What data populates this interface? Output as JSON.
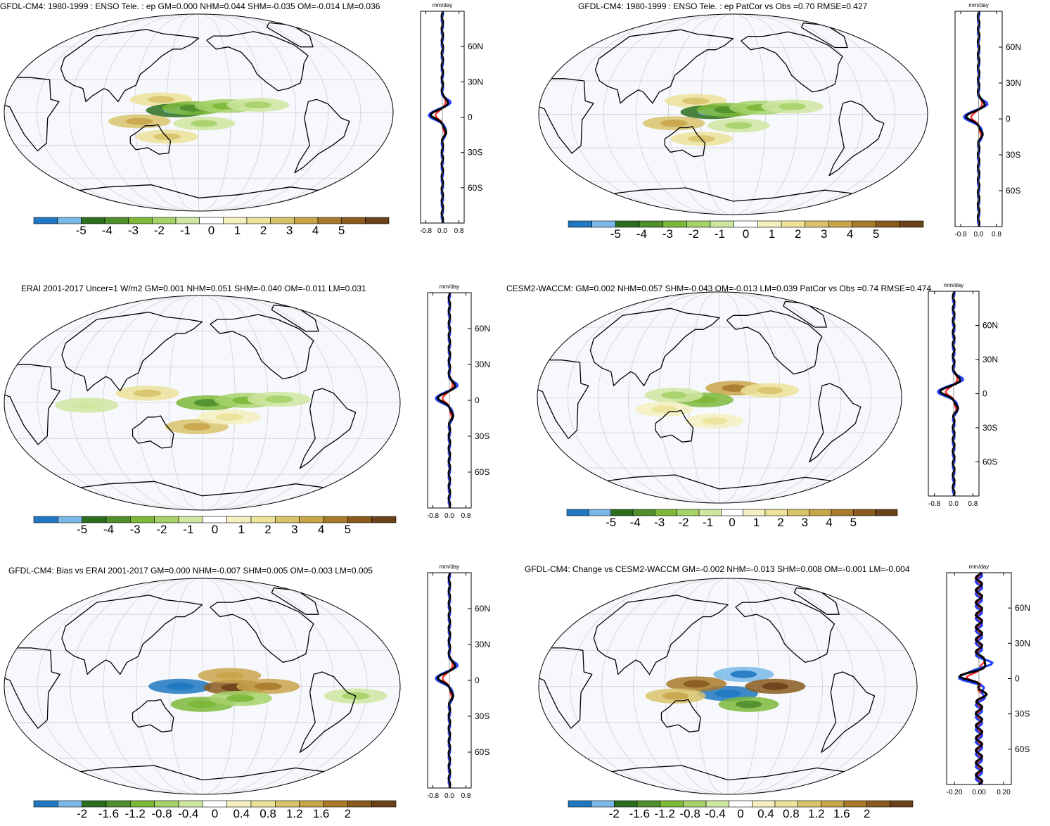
{
  "chart_data": [
    {
      "type": "heatmap",
      "title": "GFDL-CM4: 1980-1999 : ENSO Tele. : ep GM=0.000 NHM=0.044 SHM=-0.035 OM=-0.014 LM=0.036",
      "colorbar_ticks": [
        "-5",
        "-4",
        "-3",
        "-2",
        "-1",
        "0",
        "1",
        "2",
        "3",
        "4",
        "5"
      ],
      "profile": {
        "unit": "mm/day",
        "yticks": [
          "60N",
          "30N",
          "0",
          "30S",
          "60S"
        ],
        "xticks": [
          "-0.8",
          "0.0",
          "0.8"
        ]
      },
      "anomalies": [
        {
          "lon": 145,
          "lat": 12,
          "v": 1.5
        },
        {
          "lon": 160,
          "lat": 2,
          "v": -3.5
        },
        {
          "lon": 175,
          "lat": 4,
          "v": -2.5
        },
        {
          "lon": 205,
          "lat": 6,
          "v": -1.5
        },
        {
          "lon": 235,
          "lat": 7,
          "v": -1
        },
        {
          "lon": 185,
          "lat": -10,
          "v": -1
        },
        {
          "lon": 125,
          "lat": -8,
          "v": 2
        },
        {
          "lon": 150,
          "lat": -22,
          "v": 1.5
        }
      ]
    },
    {
      "type": "heatmap",
      "title": "GFDL-CM4: 1980-1999 : ENSO Tele. : ep PatCor vs Obs =0.70 RMSE=0.427",
      "colorbar_ticks": [
        "-5",
        "-4",
        "-3",
        "-2",
        "-1",
        "0",
        "1",
        "2",
        "3",
        "4",
        "5"
      ],
      "profile": {
        "unit": "mm/day",
        "yticks": [
          "60N",
          "30N",
          "0",
          "30S",
          "60S"
        ],
        "xticks": [
          "-0.8",
          "0.0",
          "0.8"
        ]
      },
      "anomalies": [
        {
          "lon": 145,
          "lat": 12,
          "v": 1.5
        },
        {
          "lon": 160,
          "lat": 2,
          "v": -3.5
        },
        {
          "lon": 175,
          "lat": 4,
          "v": -2.5
        },
        {
          "lon": 205,
          "lat": 6,
          "v": -1.5
        },
        {
          "lon": 235,
          "lat": 7,
          "v": -1
        },
        {
          "lon": 185,
          "lat": -10,
          "v": -1
        },
        {
          "lon": 125,
          "lat": -8,
          "v": 2
        },
        {
          "lon": 150,
          "lat": -22,
          "v": 1.5
        }
      ]
    },
    {
      "type": "heatmap",
      "title": "ERAI 2001-2017 Uncer=1 W/m2 GM=0.001 NHM=0.051 SHM=-0.040 OM=-0.011 LM=0.031",
      "colorbar_ticks": [
        "-5",
        "-4",
        "-3",
        "-2",
        "-1",
        "0",
        "1",
        "2",
        "3",
        "4",
        "5"
      ],
      "profile": {
        "unit": "mm/day",
        "yticks": [
          "60N",
          "30N",
          "0",
          "30S",
          "60S"
        ],
        "xticks": [
          "-0.8",
          "0.0",
          "0.8"
        ]
      },
      "anomalies": [
        {
          "lon": 130,
          "lat": 8,
          "v": 1.5
        },
        {
          "lon": 185,
          "lat": 0,
          "v": -2.5
        },
        {
          "lon": 220,
          "lat": 2,
          "v": -1.5
        },
        {
          "lon": 250,
          "lat": 3,
          "v": -1
        },
        {
          "lon": 175,
          "lat": -20,
          "v": 2
        },
        {
          "lon": 205,
          "lat": -12,
          "v": 1
        },
        {
          "lon": 75,
          "lat": -2,
          "v": -0.5
        }
      ]
    },
    {
      "type": "heatmap",
      "title": "CESM2-WACCM: GM=0.002 NHM=0.057 SHM=-0.043 OM=-0.013 LM=0.039 PatCor vs Obs =0.74 RMSE=0.474",
      "colorbar_ticks": [
        "-5",
        "-4",
        "-3",
        "-2",
        "-1",
        "0",
        "1",
        "2",
        "3",
        "4",
        "5"
      ],
      "profile": {
        "unit": "mm/day",
        "yticks": [
          "60N",
          "30N",
          "0",
          "30S",
          "60S"
        ],
        "xticks": [
          "-0.8",
          "0.0",
          "0.8"
        ]
      },
      "anomalies": [
        {
          "lon": 195,
          "lat": 8,
          "v": 3
        },
        {
          "lon": 230,
          "lat": 6,
          "v": 1.5
        },
        {
          "lon": 165,
          "lat": -2,
          "v": -2
        },
        {
          "lon": 135,
          "lat": 2,
          "v": -1
        },
        {
          "lon": 175,
          "lat": -20,
          "v": 1
        },
        {
          "lon": 125,
          "lat": -10,
          "v": 1
        }
      ]
    },
    {
      "type": "heatmap",
      "title": "GFDL-CM4: Bias vs ERAI 2001-2017 GM=0.000 NHM=-0.007 SHM=0.005 OM=-0.003 LM=0.005",
      "colorbar_ticks": [
        "-2",
        "-1.6",
        "-1.2",
        "-0.8",
        "-0.4",
        "0",
        "0.4",
        "0.8",
        "1.2",
        "1.6",
        "2"
      ],
      "profile": {
        "unit": "mm/day",
        "yticks": [
          "60N",
          "30N",
          "0",
          "30S",
          "60S"
        ],
        "xticks": [
          "-0.8",
          "0.0",
          "0.8"
        ]
      },
      "anomalies": [
        {
          "lon": 160,
          "lat": 0,
          "v": -2
        },
        {
          "lon": 210,
          "lat": -1,
          "v": 1.8
        },
        {
          "lon": 240,
          "lat": 0,
          "v": 1.2
        },
        {
          "lon": 205,
          "lat": 9,
          "v": 1
        },
        {
          "lon": 180,
          "lat": -15,
          "v": -0.8
        },
        {
          "lon": 215,
          "lat": -10,
          "v": -0.6
        },
        {
          "lon": 320,
          "lat": -8,
          "v": -0.4
        }
      ]
    },
    {
      "type": "heatmap",
      "title": "GFDL-CM4: Change vs CESM2-WACCM GM=-0.002 NHM=-0.013 SHM=0.008 OM=-0.001 LM=-0.004",
      "colorbar_ticks": [
        "-2",
        "-1.6",
        "-1.2",
        "-0.8",
        "-0.4",
        "0",
        "0.4",
        "0.8",
        "1.2",
        "1.6",
        "2"
      ],
      "profile": {
        "unit": "mm/day",
        "yticks": [
          "60N",
          "30N",
          "0",
          "30S",
          "60S"
        ],
        "xticks": [
          "-0.20",
          "0.00",
          "0.20"
        ]
      },
      "anomalies": [
        {
          "lon": 195,
          "lat": 10,
          "v": -1.6
        },
        {
          "lon": 180,
          "lat": -6,
          "v": -2
        },
        {
          "lon": 225,
          "lat": 0,
          "v": 1.8
        },
        {
          "lon": 150,
          "lat": 2,
          "v": 1.4
        },
        {
          "lon": 200,
          "lat": -15,
          "v": -1
        },
        {
          "lon": 130,
          "lat": -8,
          "v": 0.8
        }
      ]
    }
  ]
}
